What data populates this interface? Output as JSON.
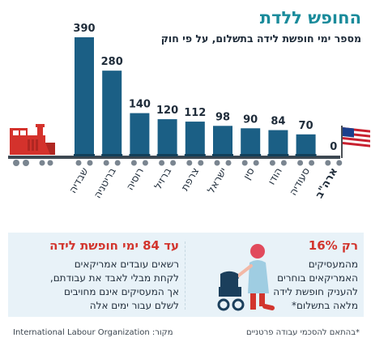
{
  "header": {
    "title": "החופש ללדת",
    "subtitle": "מספר ימי חופשת לידה בתשלום, על פי חוק"
  },
  "chart_data": {
    "type": "bar",
    "title": "החופש ללדת",
    "subtitle": "מספר ימי חופשת לידה בתשלום, על פי חוק",
    "categories": [
      "שבדיה",
      "בריטניה",
      "רוסיה",
      "ברזיל",
      "צרפת",
      "ישראל",
      "סין",
      "הודו",
      "סעודיה",
      "ארה\"ב"
    ],
    "values": [
      390,
      280,
      140,
      120,
      112,
      98,
      90,
      84,
      70,
      0
    ],
    "ylim": [
      0,
      390
    ],
    "xlabel": "",
    "ylabel": "",
    "grid": false,
    "legend": "none",
    "bar_color": "#1b5f85",
    "bold_category": "ארה\"ב",
    "colors": {
      "train_red": "#d4322c",
      "rail": "#3d4852",
      "wheel": "#7a8590",
      "flag_red": "#c8202f",
      "flag_blue": "#1c3f8c"
    }
  },
  "info": {
    "left_headline": "עד 84 ימי חופשת לידה",
    "left_body": [
      "רשאים עובדים אמריקאים",
      "לקחת מבלי לאבד את עבודתם,",
      "אך המעסיקים אינם מחויבים",
      "לשלם עבור ימים אלה"
    ],
    "right_headline": "רק 16%",
    "right_body": [
      "מהמעסיקים",
      "האמריקאים בוחרים",
      "להעניק חופשת לידה",
      "מלאה בתשלום*"
    ],
    "panel_color": "#e8f2f8",
    "icons": [
      "woman-icon",
      "stroller-icon"
    ]
  },
  "footer": {
    "source": "International Labour Organization :מקור",
    "note": "*בהתאם להסכמי עבודה פרטניים"
  }
}
